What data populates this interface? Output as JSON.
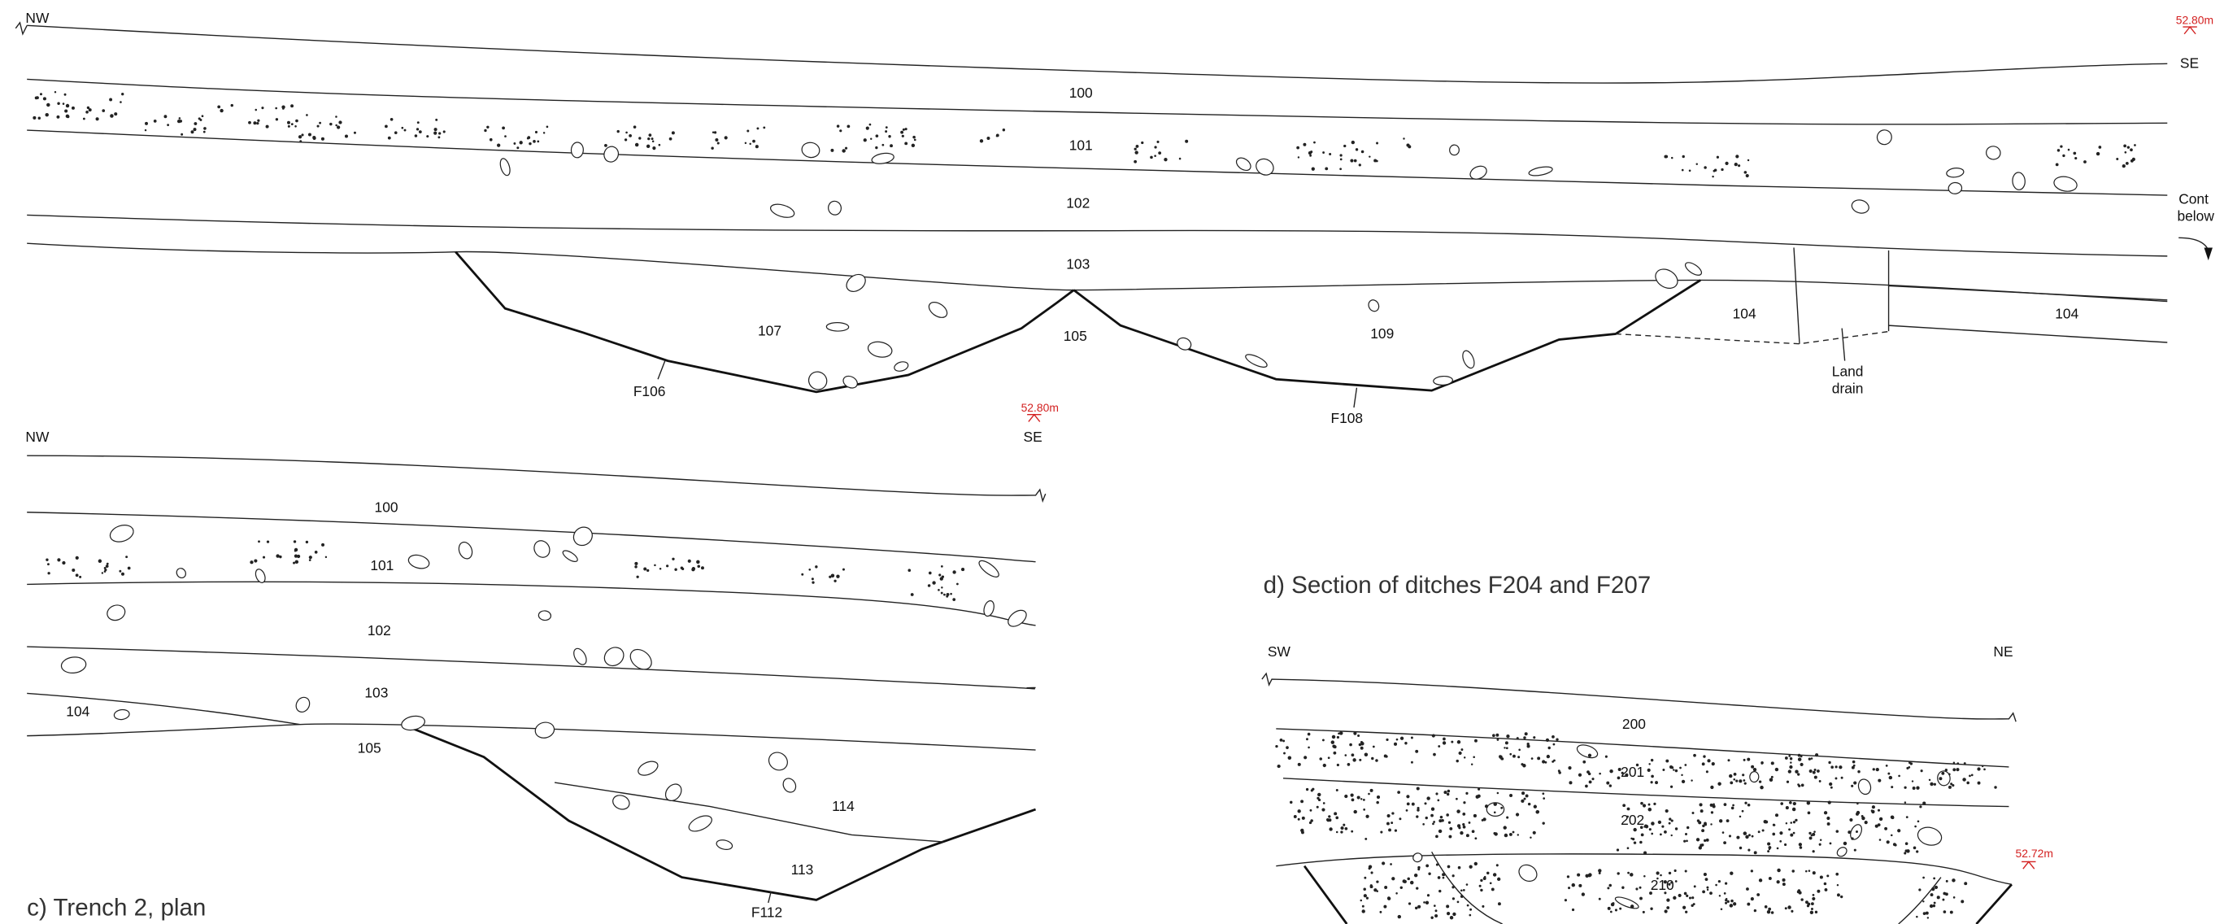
{
  "section_1": {
    "left": "NW",
    "right": "SE",
    "datum": "52.80m",
    "contexts": [
      "100",
      "101",
      "102",
      "103",
      "107",
      "105",
      "109",
      "104",
      "104"
    ],
    "cuts": [
      "F106",
      "F108"
    ],
    "land_drain": [
      "Land",
      "drain"
    ],
    "continuation": [
      "Cont",
      "below"
    ]
  },
  "section_2": {
    "left": "NW",
    "right": "SE",
    "datum": "52.80m",
    "contexts": [
      "100",
      "101",
      "102",
      "103",
      "104",
      "105",
      "114",
      "113"
    ],
    "cuts": [
      "F112"
    ],
    "caption": "c) Trench 2, plan"
  },
  "section_3": {
    "title": "d) Section of ditches F204 and F207",
    "left": "SW",
    "right": "NE",
    "datum": "52.72m",
    "contexts": [
      "200",
      "201",
      "202",
      "210"
    ]
  }
}
